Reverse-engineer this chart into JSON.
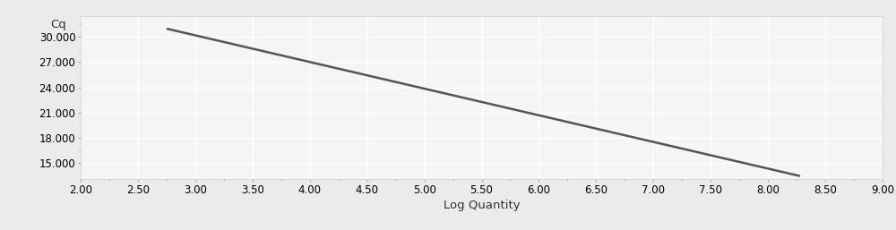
{
  "x_data": [
    2.75,
    8.28
  ],
  "y_data": [
    31.0,
    13.4
  ],
  "xlim": [
    2.0,
    9.0
  ],
  "ylim": [
    13.0,
    32.5
  ],
  "xticks": [
    2.0,
    2.5,
    3.0,
    3.5,
    4.0,
    4.5,
    5.0,
    5.5,
    6.0,
    6.5,
    7.0,
    7.5,
    8.0,
    8.5,
    9.0
  ],
  "yticks": [
    15.0,
    18.0,
    21.0,
    24.0,
    27.0,
    30.0
  ],
  "xlabel": "Log Quantity",
  "ylabel": "Cq",
  "line_color": "#555555",
  "line_width": 1.8,
  "bg_color": "#ebebeb",
  "plot_bg_color": "#f5f5f5",
  "grid_color": "#ffffff",
  "grid_linewidth": 1.0,
  "tick_fontsize": 8.5,
  "label_fontsize": 9.5,
  "ylabel_fontsize": 9.5
}
